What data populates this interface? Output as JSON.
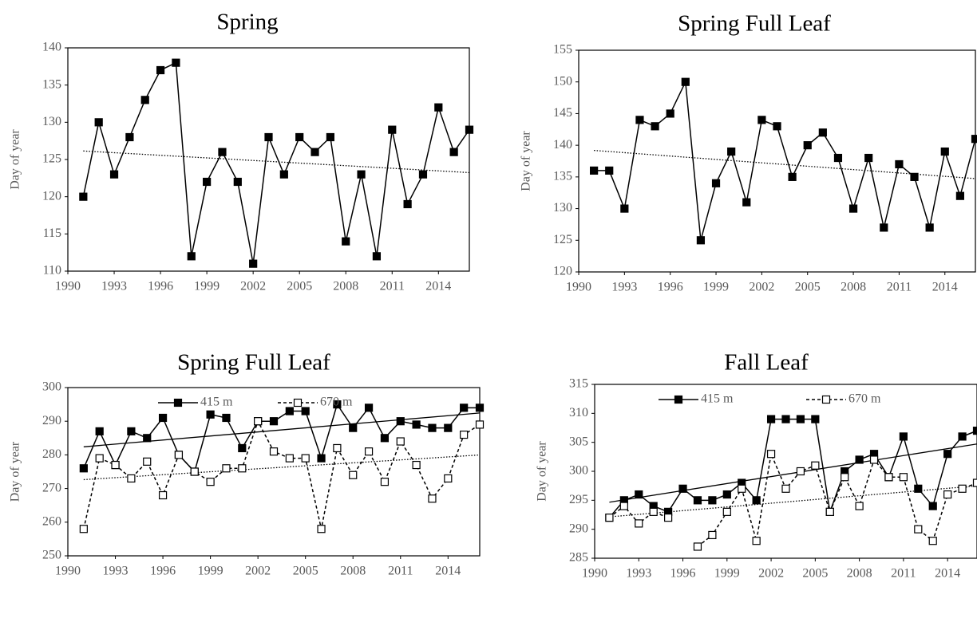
{
  "chart_data": [
    {
      "type": "line",
      "title": "Spring",
      "ylabel": "Day of year",
      "x": [
        1991,
        1992,
        1993,
        1994,
        1995,
        1996,
        1997,
        1998,
        1999,
        2000,
        2001,
        2002,
        2003,
        2004,
        2005,
        2006,
        2007,
        2008,
        2009,
        2010,
        2011,
        2012,
        2013,
        2014,
        2015,
        2016
      ],
      "values": [
        120,
        130,
        123,
        128,
        133,
        137,
        138,
        112,
        122,
        126,
        122,
        111,
        128,
        123,
        128,
        126,
        128,
        114,
        123,
        112,
        129,
        119,
        123,
        132,
        126,
        129
      ],
      "color": "#000000",
      "marker": "filled",
      "dash": "solid",
      "trend": "dotted",
      "xlim": [
        1990,
        2016
      ],
      "xticks": [
        1990,
        1993,
        1996,
        1999,
        2002,
        2005,
        2008,
        2011,
        2014
      ],
      "ylim": [
        110,
        140
      ],
      "yticks": [
        110,
        115,
        120,
        125,
        130,
        135,
        140
      ]
    },
    {
      "type": "line",
      "title": "Spring Full Leaf",
      "ylabel": "Day of year",
      "x": [
        1991,
        1992,
        1993,
        1994,
        1995,
        1996,
        1997,
        1998,
        1999,
        2000,
        2001,
        2002,
        2003,
        2004,
        2005,
        2006,
        2007,
        2008,
        2009,
        2010,
        2011,
        2012,
        2013,
        2014,
        2015,
        2016
      ],
      "values": [
        136,
        136,
        130,
        144,
        143,
        145,
        150,
        125,
        134,
        139,
        131,
        144,
        143,
        135,
        140,
        142,
        138,
        130,
        138,
        127,
        137,
        135,
        127,
        139,
        132,
        141
      ],
      "color": "#000000",
      "marker": "filled",
      "dash": "solid",
      "trend": "dotted",
      "xlim": [
        1990,
        2016
      ],
      "xticks": [
        1990,
        1993,
        1996,
        1999,
        2002,
        2005,
        2008,
        2011,
        2014
      ],
      "ylim": [
        120,
        155
      ],
      "yticks": [
        120,
        125,
        130,
        135,
        140,
        145,
        150,
        155
      ]
    },
    {
      "type": "line",
      "title": "Spring Full Leaf",
      "ylabel": "Day of year",
      "legend": "top",
      "x": [
        1991,
        1992,
        1993,
        1994,
        1995,
        1996,
        1997,
        1998,
        1999,
        2000,
        2001,
        2002,
        2003,
        2004,
        2005,
        2006,
        2007,
        2008,
        2009,
        2010,
        2011,
        2012,
        2013,
        2014,
        2015,
        2016
      ],
      "series": [
        {
          "name": "415 m",
          "color": "#000000",
          "marker": "filled",
          "dash": "solid",
          "trend": "solid",
          "values": [
            276,
            287,
            277,
            287,
            285,
            291,
            280,
            275,
            292,
            291,
            282,
            290,
            290,
            293,
            293,
            279,
            295,
            288,
            294,
            285,
            290,
            289,
            288,
            288,
            294,
            294
          ]
        },
        {
          "name": "670 m",
          "color": "#000000",
          "marker": "open",
          "dash": "dashed",
          "trend": "dotted",
          "values": [
            258,
            279,
            277,
            273,
            278,
            268,
            280,
            275,
            272,
            276,
            276,
            290,
            281,
            279,
            279,
            258,
            282,
            274,
            281,
            272,
            284,
            277,
            267,
            273,
            286,
            289
          ]
        }
      ],
      "xlim": [
        1990,
        2016
      ],
      "xticks": [
        1990,
        1993,
        1996,
        1999,
        2002,
        2005,
        2008,
        2011,
        2014
      ],
      "ylim": [
        250,
        300
      ],
      "yticks": [
        250,
        260,
        270,
        280,
        290,
        300
      ]
    },
    {
      "type": "line",
      "title": "Fall Leaf",
      "ylabel": "Day of year",
      "legend": "top",
      "x": [
        1991,
        1992,
        1993,
        1994,
        1995,
        1996,
        1997,
        1998,
        1999,
        2000,
        2001,
        2002,
        2003,
        2004,
        2005,
        2006,
        2007,
        2008,
        2009,
        2010,
        2011,
        2012,
        2013,
        2014,
        2015,
        2016
      ],
      "series": [
        {
          "name": "415 m",
          "color": "#000000",
          "marker": "filled",
          "dash": "solid",
          "trend": "solid",
          "values": [
            292,
            295,
            296,
            294,
            293,
            297,
            295,
            295,
            296,
            298,
            295,
            309,
            309,
            309,
            309,
            293,
            300,
            302,
            303,
            299,
            306,
            297,
            294,
            303,
            306,
            307
          ]
        },
        {
          "name": "670 m",
          "color": "#000000",
          "marker": "open",
          "dash": "dashed",
          "trend": "dotted",
          "values": [
            292,
            294,
            291,
            293,
            292,
            null,
            287,
            289,
            293,
            297,
            288,
            303,
            297,
            300,
            301,
            293,
            299,
            294,
            302,
            299,
            299,
            290,
            288,
            296,
            297,
            298
          ]
        }
      ],
      "xlim": [
        1990,
        2016
      ],
      "xticks": [
        1990,
        1993,
        1996,
        1999,
        2002,
        2005,
        2008,
        2011,
        2014
      ],
      "ylim": [
        285,
        315
      ],
      "yticks": [
        285,
        290,
        295,
        300,
        305,
        310,
        315
      ]
    }
  ]
}
